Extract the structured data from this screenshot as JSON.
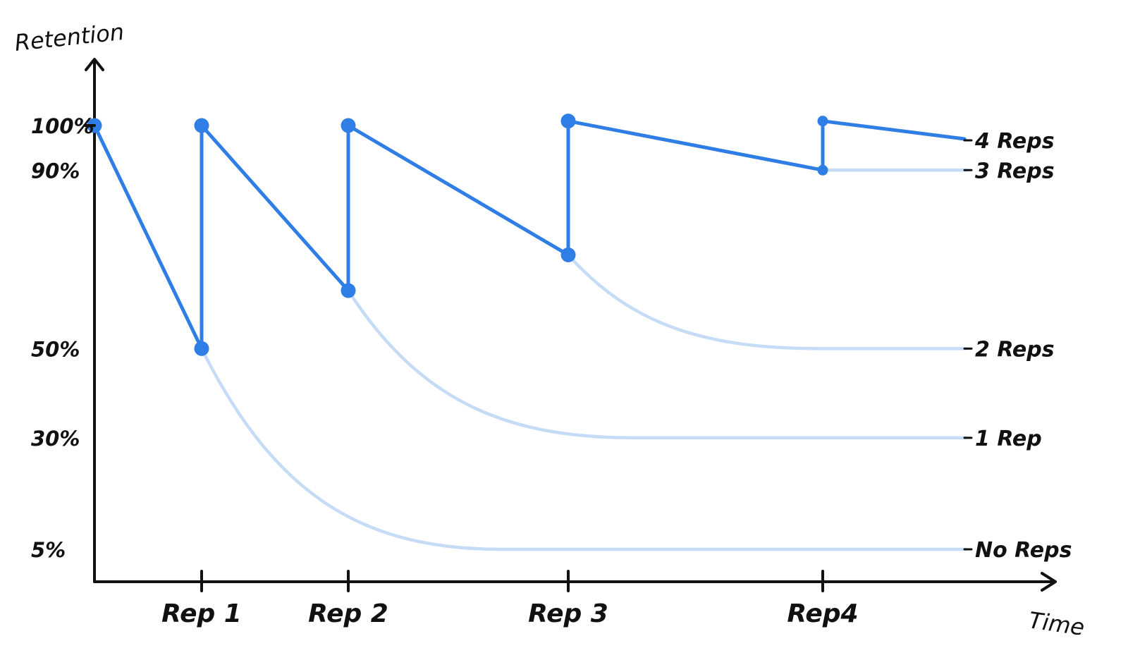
{
  "chart_data": {
    "type": "line",
    "ylabel": "Retention",
    "xlabel": "Time",
    "y_ticks": [
      {
        "label": "100%",
        "value": 100
      },
      {
        "label": "90%",
        "value": 90
      },
      {
        "label": "50%",
        "value": 50
      },
      {
        "label": "30%",
        "value": 30
      },
      {
        "label": "5%",
        "value": 5
      }
    ],
    "x_ticks": [
      {
        "label": "Rep 1",
        "value": 1
      },
      {
        "label": "Rep 2",
        "value": 2
      },
      {
        "label": "Rep 3",
        "value": 3
      },
      {
        "label": "Rep4",
        "value": 4
      }
    ],
    "xlim": [
      0,
      5
    ],
    "ylim": [
      -5,
      125
    ],
    "grid": false,
    "colors": {
      "main": "#2f7ee6",
      "faded": "#c6dcf6",
      "axis": "#111111"
    },
    "review_path": {
      "segments": [
        [
          [
            0,
            100
          ],
          [
            1,
            50
          ],
          [
            1,
            100
          ],
          [
            2,
            63
          ],
          [
            2,
            100
          ],
          [
            3,
            71
          ],
          [
            3,
            101
          ],
          [
            4,
            90
          ],
          [
            4,
            101
          ],
          [
            4.65,
            97
          ]
        ]
      ],
      "markers": [
        [
          0,
          100
        ],
        [
          1,
          50
        ],
        [
          1,
          100
        ],
        [
          2,
          63
        ],
        [
          2,
          100
        ],
        [
          3,
          71
        ],
        [
          3,
          101
        ],
        [
          4,
          90
        ],
        [
          4,
          101
        ]
      ]
    },
    "series": [
      {
        "name": "No Reps",
        "start": [
          1,
          50
        ],
        "end_value": 5
      },
      {
        "name": "1 Rep",
        "start": [
          2,
          63
        ],
        "end_value": 30
      },
      {
        "name": "2 Reps",
        "start": [
          3,
          71
        ],
        "end_value": 50
      },
      {
        "name": "3 Reps",
        "start": [
          4,
          90
        ],
        "end_value": 90
      },
      {
        "name": "4 Reps",
        "start": [
          4,
          101
        ],
        "end_value": 97
      }
    ]
  }
}
